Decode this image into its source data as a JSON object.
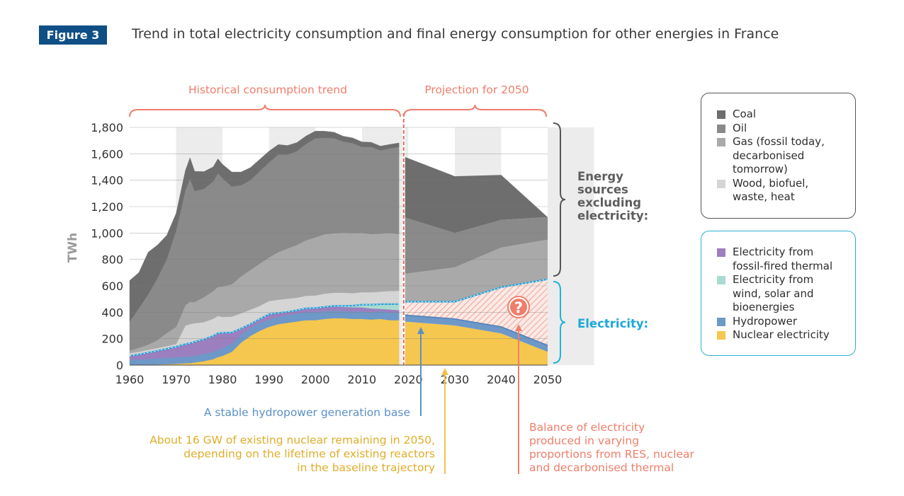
{
  "header": {
    "figure_label": "Figure 3",
    "title": "Trend in total electricity consumption and final energy consumption for other energies in France"
  },
  "chart_data": {
    "type": "area",
    "ylabel": "TWh",
    "ylim": [
      0,
      1800
    ],
    "xlim": [
      1960,
      2050
    ],
    "x_ticks": [
      1960,
      1970,
      1980,
      1990,
      2000,
      2010,
      2020,
      2030,
      2040,
      2050
    ],
    "y_ticks": [
      0,
      200,
      400,
      600,
      800,
      1000,
      1200,
      1400,
      1600,
      1800
    ],
    "y_tick_labels": [
      "0",
      "200",
      "400",
      "600",
      "800",
      "1,000",
      "1,200",
      "1,400",
      "1,600",
      "1,800"
    ],
    "historical_x": [
      1960,
      1962,
      1964,
      1966,
      1968,
      1970,
      1972,
      1973,
      1974,
      1976,
      1978,
      1979,
      1980,
      1982,
      1984,
      1986,
      1988,
      1990,
      1992,
      1994,
      1996,
      1998,
      2000,
      2002,
      2004,
      2006,
      2008,
      2010,
      2012,
      2014,
      2016,
      2018
    ],
    "historical_series": [
      {
        "name": "Nuclear electricity",
        "color": "#f5c74e",
        "values": [
          0,
          1,
          3,
          5,
          7,
          9,
          14,
          15,
          20,
          30,
          45,
          60,
          70,
          100,
          170,
          220,
          260,
          290,
          310,
          320,
          330,
          340,
          340,
          350,
          355,
          355,
          350,
          350,
          345,
          350,
          340,
          340
        ]
      },
      {
        "name": "Hydropower",
        "color": "#6d98c8",
        "values": [
          40,
          42,
          44,
          46,
          48,
          50,
          50,
          50,
          52,
          55,
          56,
          57,
          60,
          62,
          62,
          60,
          58,
          55,
          55,
          58,
          60,
          60,
          60,
          58,
          56,
          55,
          56,
          55,
          56,
          58,
          57,
          57
        ]
      },
      {
        "name": "Electricity from fossil-fired thermal",
        "color": "#9c7fbe",
        "values": [
          30,
          38,
          48,
          58,
          68,
          80,
          95,
          100,
          105,
          110,
          120,
          125,
          115,
          85,
          45,
          30,
          30,
          40,
          30,
          25,
          25,
          30,
          30,
          30,
          32,
          30,
          32,
          32,
          28,
          18,
          24,
          20
        ]
      },
      {
        "name": "Electricity from wind, solar and bioenergies",
        "color": "#a9dcd0",
        "values": [
          0,
          0,
          0,
          0,
          0,
          0,
          0,
          0,
          0,
          0,
          0,
          0,
          0,
          0,
          0,
          0,
          0,
          0,
          0,
          0,
          0,
          0,
          2,
          3,
          5,
          8,
          12,
          20,
          28,
          35,
          40,
          45
        ]
      },
      {
        "name": "Wood, biofuel, waste, heat",
        "color": "#d5d5d5",
        "values": [
          20,
          20,
          20,
          20,
          20,
          20,
          140,
          145,
          140,
          130,
          130,
          130,
          120,
          120,
          115,
          110,
          100,
          100,
          100,
          100,
          95,
          95,
          95,
          100,
          100,
          100,
          95,
          95,
          95,
          95,
          100,
          100
        ]
      },
      {
        "name": "Gas (fossil today, decarbonised tomorrow)",
        "color": "#a9a9a9",
        "values": [
          20,
          30,
          40,
          60,
          100,
          130,
          155,
          170,
          160,
          190,
          210,
          220,
          230,
          245,
          280,
          300,
          320,
          330,
          360,
          380,
          400,
          420,
          440,
          450,
          450,
          455,
          455,
          450,
          440,
          440,
          440,
          430
        ]
      },
      {
        "name": "Oil",
        "color": "#8a8a8a",
        "values": [
          220,
          300,
          380,
          470,
          560,
          730,
          870,
          930,
          840,
          820,
          830,
          860,
          820,
          740,
          690,
          680,
          700,
          720,
          740,
          710,
          710,
          730,
          750,
          730,
          720,
          690,
          680,
          650,
          660,
          630,
          640,
          660
        ]
      },
      {
        "name": "Coal",
        "color": "#6e6e6e",
        "values": [
          310,
          270,
          320,
          250,
          180,
          130,
          150,
          160,
          150,
          130,
          110,
          110,
          105,
          110,
          100,
          95,
          90,
          85,
          75,
          70,
          65,
          60,
          55,
          50,
          45,
          40,
          40,
          38,
          35,
          32,
          30,
          30
        ]
      }
    ],
    "projection_x": [
      2019,
      2030,
      2040,
      2050
    ],
    "projection_series": [
      {
        "name": "Nuclear electricity",
        "values": [
          330,
          300,
          240,
          100
        ]
      },
      {
        "name": "Hydropower",
        "values": [
          50,
          50,
          50,
          50
        ]
      },
      {
        "name": "Balance of electricity",
        "values": [
          100,
          130,
          300,
          500
        ]
      },
      {
        "name": "Wood, biofuel, waste, heat",
        "values": [
          210,
          260,
          300,
          300
        ]
      },
      {
        "name": "Gas (fossil today, decarbonised tomorrow)",
        "values": [
          430,
          260,
          210,
          170
        ]
      },
      {
        "name": "Oil and coal",
        "values": [
          460,
          430,
          340,
          0
        ]
      }
    ],
    "annotations": {
      "historical_label": "Historical consumption trend",
      "projection_label": "Projection for 2050",
      "energy_sources_label": "Energy sources excluding electricity:",
      "electricity_label": "Electricity:",
      "question_mark": "?",
      "hydro_note": "A stable hydropower generation base",
      "nuclear_note": "About 16 GW of existing nuclear remaining in 2050,\ndepending on the lifetime of existing reactors\nin the baseline trajectory",
      "balance_note": "Balance of electricity\nproduced in varying\nproportions from RES, nuclear\nand decarbonised thermal"
    }
  },
  "legend_energy": [
    {
      "label": "Coal",
      "color": "#6e6e6e"
    },
    {
      "label": "Oil",
      "color": "#8a8a8a"
    },
    {
      "label": "Gas (fossil today,\ndecarbonised\ntomorrow)",
      "color": "#a9a9a9"
    },
    {
      "label": "Wood, biofuel,\nwaste, heat",
      "color": "#d5d5d5"
    }
  ],
  "legend_electricity": [
    {
      "label": "Electricity from\nfossil-fired thermal",
      "color": "#9c7fbe"
    },
    {
      "label": "Electricity from\nwind, solar and\nbioenergies",
      "color": "#a9dcd0"
    },
    {
      "label": "Hydropower",
      "color": "#6d98c8"
    },
    {
      "label": "Nuclear electricity",
      "color": "#f5c74e"
    }
  ]
}
